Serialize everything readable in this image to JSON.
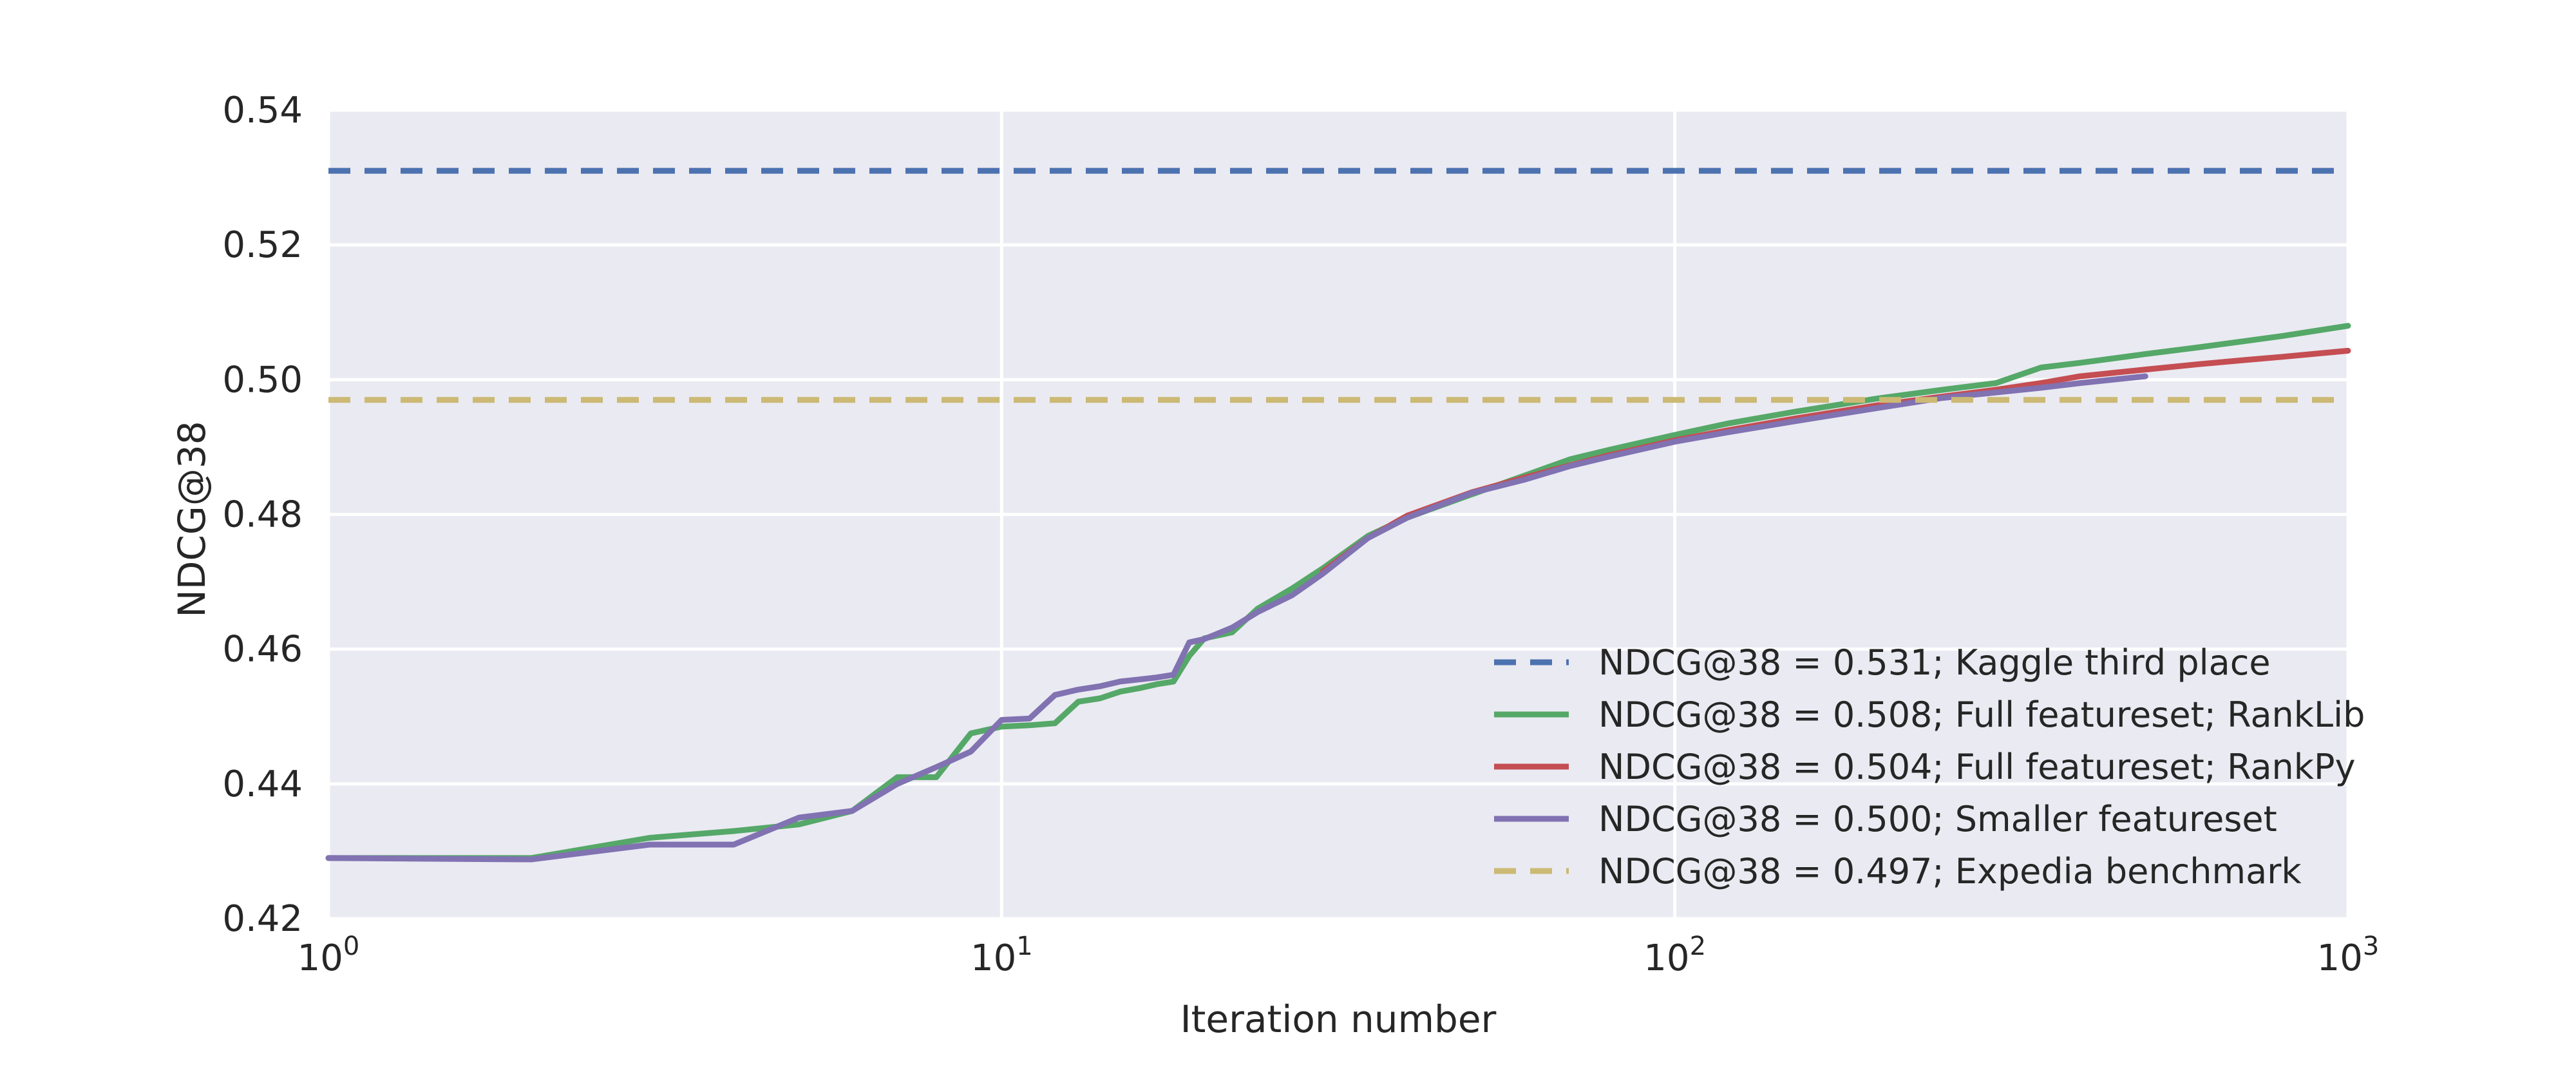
{
  "chart_data": {
    "type": "line",
    "xscale": "log",
    "xlim": [
      1,
      1000
    ],
    "ylim": [
      0.42,
      0.54
    ],
    "xlabel": "Iteration number",
    "ylabel": "NDCG@38",
    "grid": true,
    "legend_position": "lower-right",
    "x_ticks": [
      {
        "value": 1,
        "base": "10",
        "exp": "0"
      },
      {
        "value": 10,
        "base": "10",
        "exp": "1"
      },
      {
        "value": 100,
        "base": "10",
        "exp": "2"
      },
      {
        "value": 1000,
        "base": "10",
        "exp": "3"
      }
    ],
    "y_ticks": [
      {
        "value": 0.42,
        "label": "0.42"
      },
      {
        "value": 0.44,
        "label": "0.44"
      },
      {
        "value": 0.46,
        "label": "0.46"
      },
      {
        "value": 0.48,
        "label": "0.48"
      },
      {
        "value": 0.5,
        "label": "0.50"
      },
      {
        "value": 0.52,
        "label": "0.52"
      },
      {
        "value": 0.54,
        "label": "0.54"
      }
    ],
    "series": [
      {
        "name": "NDCG@38 = 0.531; Kaggle third place",
        "color": "#4c72b0",
        "style": "dashed",
        "x": [
          1,
          1000
        ],
        "y": [
          0.531,
          0.531
        ]
      },
      {
        "name": "NDCG@38 = 0.508; Full featureset; RankLib",
        "color": "#55a868",
        "style": "solid",
        "x": [
          1,
          2,
          3,
          4,
          5,
          6,
          7,
          8,
          9,
          10,
          11,
          12,
          13,
          14,
          15,
          16,
          17,
          18,
          19,
          20,
          22,
          24,
          27,
          30,
          35,
          40,
          50,
          60,
          70,
          80,
          100,
          120,
          150,
          200,
          250,
          300,
          350,
          400,
          500,
          600,
          700,
          800,
          1000
        ],
        "y": [
          0.429,
          0.429,
          0.432,
          0.433,
          0.434,
          0.436,
          0.441,
          0.441,
          0.4475,
          0.4485,
          0.4487,
          0.449,
          0.4522,
          0.4527,
          0.4537,
          0.4542,
          0.4548,
          0.4552,
          0.459,
          0.4616,
          0.4625,
          0.466,
          0.469,
          0.472,
          0.4768,
          0.4795,
          0.483,
          0.4858,
          0.4882,
          0.4896,
          0.4918,
          0.4935,
          0.4952,
          0.4972,
          0.4985,
          0.4995,
          0.5018,
          0.5025,
          0.5038,
          0.5048,
          0.5057,
          0.5065,
          0.508
        ]
      },
      {
        "name": "NDCG@38 = 0.504; Full featureset; RankPy",
        "color": "#c44e52",
        "style": "solid",
        "x": [
          30,
          35,
          40,
          50,
          60,
          70,
          80,
          100,
          120,
          150,
          200,
          250,
          300,
          350,
          400,
          500,
          600,
          700,
          800,
          1000
        ],
        "y": [
          0.4715,
          0.4765,
          0.4798,
          0.4833,
          0.4855,
          0.4873,
          0.4888,
          0.491,
          0.4925,
          0.4942,
          0.4962,
          0.4975,
          0.4985,
          0.4995,
          0.5005,
          0.5015,
          0.5023,
          0.5029,
          0.5034,
          0.5043
        ]
      },
      {
        "name": "NDCG@38 = 0.500; Smaller featureset",
        "color": "#8172b2",
        "style": "solid",
        "x": [
          1,
          2,
          3,
          4,
          5,
          6,
          7,
          8,
          9,
          10,
          11,
          12,
          13,
          14,
          15,
          16,
          17,
          18,
          19,
          20,
          22,
          24,
          27,
          30,
          35,
          40,
          50,
          60,
          70,
          80,
          100,
          120,
          150,
          200,
          250,
          300,
          350,
          400,
          500
        ],
        "y": [
          0.429,
          0.4288,
          0.431,
          0.431,
          0.435,
          0.436,
          0.44,
          0.4425,
          0.4448,
          0.4495,
          0.4497,
          0.4532,
          0.454,
          0.4545,
          0.4552,
          0.4555,
          0.4558,
          0.4562,
          0.461,
          0.4615,
          0.4632,
          0.4655,
          0.468,
          0.4712,
          0.4765,
          0.4795,
          0.4832,
          0.4852,
          0.4872,
          0.4886,
          0.4908,
          0.4922,
          0.4938,
          0.4958,
          0.4973,
          0.4981,
          0.4988,
          0.4995,
          0.5005
        ]
      },
      {
        "name": "NDCG@38 = 0.497; Expedia benchmark",
        "color": "#ccb974",
        "style": "dashed",
        "x": [
          1,
          1000
        ],
        "y": [
          0.497,
          0.497
        ]
      }
    ]
  }
}
